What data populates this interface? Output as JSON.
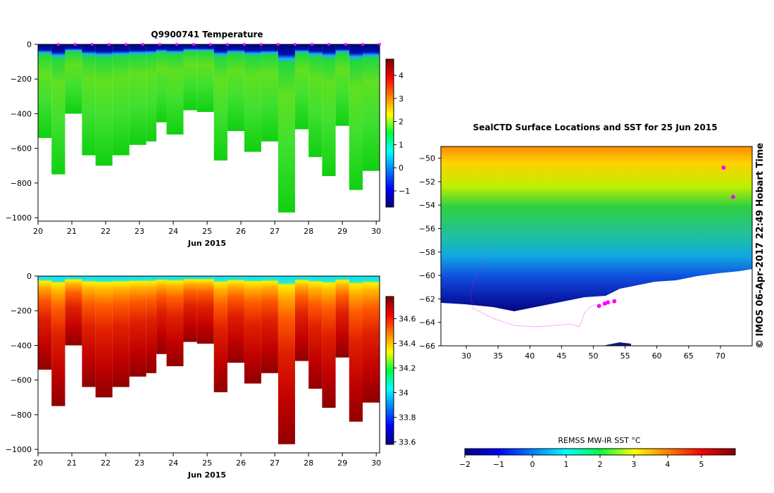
{
  "chart_data": [
    {
      "type": "heatmap",
      "title": "Q9900741  Temperature",
      "xlabel": "Jun 2015",
      "ylabel": "",
      "xlim": [
        20,
        30.1
      ],
      "ylim": [
        -1020,
        0
      ],
      "x_ticks": [
        "20",
        "21",
        "22",
        "23",
        "24",
        "25",
        "26",
        "27",
        "28",
        "29",
        "30"
      ],
      "y_ticks": [
        "0",
        "−200",
        "−400",
        "−600",
        "−800",
        "−1000"
      ],
      "colorbar": {
        "min": -1.7,
        "max": 4.7,
        "ticks": [
          "4",
          "3",
          "2",
          "1",
          "0",
          "−1"
        ],
        "tick_values": [
          4,
          3,
          2,
          1,
          0,
          -1
        ]
      },
      "profile_days": [
        20,
        20.4,
        20.8,
        21.3,
        21.7,
        22.2,
        22.7,
        23.2,
        23.5,
        23.8,
        24.3,
        24.7,
        25.2,
        25.6,
        26.1,
        26.6,
        27.1,
        27.6,
        28.0,
        28.4,
        28.8,
        29.2,
        29.6
      ],
      "profile_max_depth": [
        540,
        750,
        400,
        640,
        700,
        640,
        580,
        560,
        450,
        520,
        380,
        390,
        670,
        500,
        620,
        560,
        970,
        490,
        650,
        760,
        470,
        840,
        730
      ],
      "values_summary": {
        "surface_layer_c": -1.5,
        "subsurface_c": 1.7
      }
    },
    {
      "type": "heatmap",
      "title": "",
      "xlabel": "Jun 2015",
      "ylabel": "",
      "xlim": [
        20,
        30.1
      ],
      "ylim": [
        -1020,
        0
      ],
      "x_ticks": [
        "20",
        "21",
        "22",
        "23",
        "24",
        "25",
        "26",
        "27",
        "28",
        "29",
        "30"
      ],
      "y_ticks": [
        "0",
        "−200",
        "−400",
        "−600",
        "−800",
        "−1000"
      ],
      "colorbar": {
        "min": 33.58,
        "max": 34.78,
        "ticks": [
          "34.6",
          "34.4",
          "34.2",
          "34",
          "33.8",
          "33.6"
        ],
        "tick_values": [
          34.6,
          34.4,
          34.2,
          34.0,
          33.8,
          33.6
        ]
      },
      "values_summary": {
        "surface_layer": 33.95,
        "deep_layer": 34.7
      }
    },
    {
      "type": "heatmap",
      "title": "SealCTD Surface Locations and SST for 25 Jun 2015",
      "xlabel": "",
      "ylabel": "",
      "xlim": [
        26,
        75
      ],
      "ylim": [
        -66,
        -49
      ],
      "x_ticks": [
        "30",
        "35",
        "40",
        "45",
        "50",
        "55",
        "60",
        "65",
        "70"
      ],
      "y_ticks": [
        "−50",
        "−52",
        "−54",
        "−56",
        "−58",
        "−60",
        "−62",
        "−64",
        "−66"
      ],
      "colorbar": {
        "label": "REMSS MW-IR SST °C",
        "min": -2,
        "max": 6,
        "ticks": [
          "−2",
          "−1",
          "0",
          "1",
          "2",
          "3",
          "4",
          "5"
        ]
      },
      "side_label": "© IMOS 06-Apr-2017 22:49 Hobart Time",
      "track_points": [
        [
          50.9,
          -62.6
        ],
        [
          51.8,
          -62.4
        ],
        [
          52.3,
          -62.3
        ],
        [
          53.3,
          -62.2
        ],
        [
          70.5,
          -50.8
        ],
        [
          72,
          -53.3
        ]
      ]
    }
  ],
  "marker_color": "#ff00ff"
}
